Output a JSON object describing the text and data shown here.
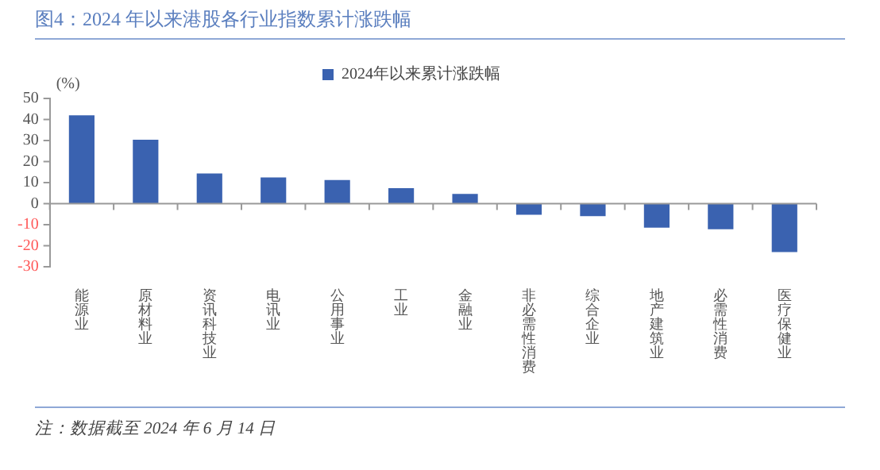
{
  "chart_data": {
    "type": "bar",
    "title": "图4：2024 年以来港股各行业指数累计涨跌幅",
    "ylabel": "(%)",
    "categories": [
      "能源业",
      "原材料业",
      "资讯科技业",
      "电讯业",
      "公用事业",
      "工业",
      "金融业",
      "非必需性消费",
      "综合企业",
      "地产建筑业",
      "必需性消费",
      "医疗保健业"
    ],
    "series": [
      {
        "name": "2024年以来累计涨跌幅",
        "color": "#3a62b0",
        "values": [
          42.0,
          30.4,
          14.3,
          12.5,
          11.2,
          7.4,
          4.6,
          -5.3,
          -5.9,
          -11.4,
          -12.2,
          -23.0
        ]
      }
    ],
    "ylim": [
      -30,
      50
    ],
    "yticks": [
      -30,
      -20,
      -10,
      0,
      10,
      20,
      30,
      40,
      50
    ],
    "legend": "top",
    "annotations": [
      "注：数据截至 2024 年 6 月 14 日"
    ]
  }
}
